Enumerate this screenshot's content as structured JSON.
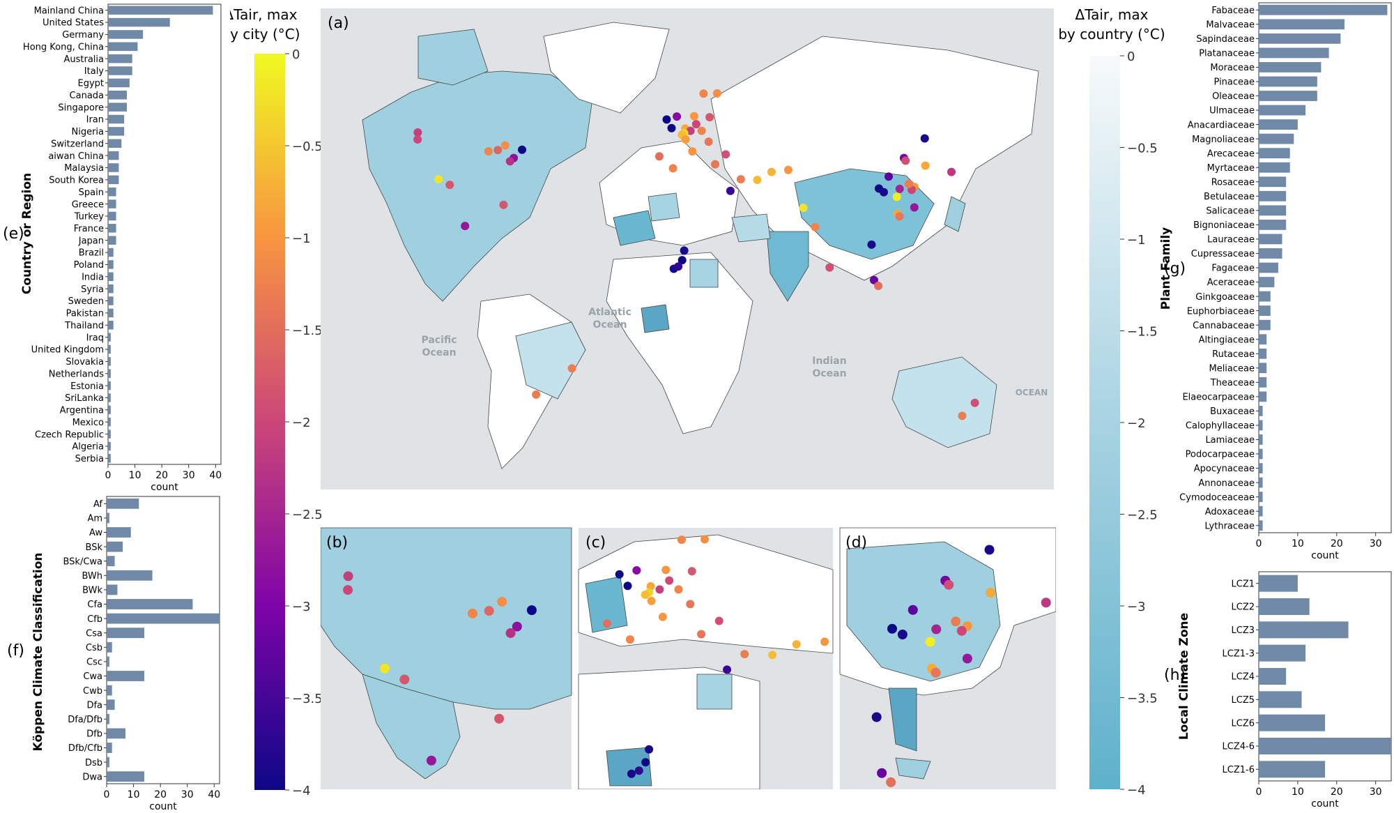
{
  "colors": {
    "bar": "#7089a7",
    "map_sea": "#dcdfe2",
    "map_land_none": "#ffffff",
    "country_light": "#e8f3f7",
    "country_dark": "#62b6d0",
    "city_scale": [
      "#0d0887",
      "#7e03a8",
      "#cc4778",
      "#f89540",
      "#f0f921"
    ]
  },
  "panel_labels": {
    "a": "(a)",
    "b": "(b)",
    "c": "(c)",
    "d": "(d)",
    "e": "(e)",
    "f": "(f)",
    "g": "(g)",
    "h": "(h)"
  },
  "colorbar_city": {
    "title_line1": "ΔTair, max",
    "title_line2": "by city (°C)",
    "ticks": [
      "0",
      "−0.5",
      "−1",
      "−1.5",
      "−2",
      "−2.5",
      "−3",
      "−3.5",
      "−4"
    ],
    "range": [
      0,
      -4
    ]
  },
  "colorbar_country": {
    "title_line1": "ΔTair, max",
    "title_line2": "by country (°C)",
    "ticks": [
      "0",
      "−0.5",
      "−1",
      "−1.5",
      "−2",
      "−2.5",
      "−3",
      "−3.5",
      "−4"
    ],
    "range": [
      0,
      -4
    ]
  },
  "map_labels": {
    "atlantic": [
      "Atlantic",
      "Ocean"
    ],
    "pacific": [
      "Pacific",
      "Ocean"
    ],
    "indian": [
      "Indian",
      "Ocean"
    ],
    "ocean": "OCEAN"
  },
  "chart_data": [
    {
      "id": "e",
      "type": "bar",
      "orientation": "horizontal",
      "ylabel": "Country or Region",
      "xlabel": "count",
      "xlim": [
        0,
        42
      ],
      "xticks": [
        "0",
        "10",
        "20",
        "30",
        "40"
      ],
      "categories": [
        "Mainland China",
        "United States",
        "Germany",
        "Hong Kong, China",
        "Australia",
        "Italy",
        "Egypt",
        "Canada",
        "Singapore",
        "Iran",
        "Nigeria",
        "Switzerland",
        "aiwan China",
        "Malaysia",
        "South Korea",
        "Spain",
        "Greece",
        "Turkey",
        "France",
        "Japan",
        "Brazil",
        "Poland",
        "India",
        "Syria",
        "Sweden",
        "Pakistan",
        "Thailand",
        "Iraq",
        "United Kingdom",
        "Slovakia",
        "Netherlands",
        "Estonia",
        "SriLanka",
        "Argentina",
        "Mexico",
        "Czech Republic",
        "Algeria",
        "Serbia"
      ],
      "values": [
        39,
        23,
        13,
        11,
        9,
        9,
        8,
        7,
        7,
        6,
        6,
        5,
        4,
        4,
        4,
        3,
        3,
        3,
        3,
        3,
        2,
        2,
        2,
        2,
        2,
        2,
        2,
        1,
        1,
        1,
        1,
        1,
        1,
        1,
        1,
        1,
        1,
        1
      ]
    },
    {
      "id": "f",
      "type": "bar",
      "orientation": "horizontal",
      "ylabel": "Köppen Climate Classification",
      "xlabel": "count",
      "xlim": [
        0,
        42
      ],
      "xticks": [
        "0",
        "10",
        "20",
        "30",
        "40"
      ],
      "categories": [
        "Af",
        "Am",
        "Aw",
        "BSk",
        "BSk/Cwa",
        "BWh",
        "BWk",
        "Cfa",
        "Cfb",
        "Csa",
        "Csb",
        "Csc",
        "Cwa",
        "Cwb",
        "Dfa",
        "Dfa/Dfb",
        "Dfb",
        "Dfb/Cfb",
        "Dsb",
        "Dwa"
      ],
      "values": [
        12,
        1,
        9,
        6,
        3,
        17,
        4,
        32,
        42,
        14,
        2,
        1,
        14,
        2,
        3,
        1,
        7,
        2,
        1,
        14
      ]
    },
    {
      "id": "g",
      "type": "bar",
      "orientation": "horizontal",
      "ylabel": "Plant Family",
      "xlabel": "count",
      "xlim": [
        0,
        34
      ],
      "xticks": [
        "0",
        "10",
        "20",
        "30"
      ],
      "categories": [
        "Fabaceae",
        "Malvaceae",
        "Sapindaceae",
        "Platanaceae",
        "Moraceae",
        "Pinaceae",
        "Oleaceae",
        "Ulmaceae",
        "Anacardiaceae",
        "Magnoliaceae",
        "Arecaceae",
        "Myrtaceae",
        "Rosaceae",
        "Betulaceae",
        "Salicaceae",
        "Bignoniaceae",
        "Lauraceae",
        "Cupressaceae",
        "Fagaceae",
        "Aceraceae",
        "Ginkgoaceae",
        "Euphorbiaceae",
        "Cannabaceae",
        "Altingiaceae",
        "Rutaceae",
        "Meliaceae",
        "Theaceae",
        "Elaeocarpaceae",
        "Buxaceae",
        "Calophyllaceae",
        "Lamiaceae",
        "Podocarpaceae",
        "Apocynaceae",
        "Annonaceae",
        "Cymodoceaceae",
        "Adoxaceae",
        "Lythraceae"
      ],
      "values": [
        33,
        22,
        21,
        18,
        16,
        15,
        15,
        12,
        10,
        9,
        8,
        8,
        7,
        7,
        7,
        7,
        6,
        6,
        5,
        4,
        3,
        3,
        3,
        2,
        2,
        2,
        2,
        2,
        1,
        1,
        1,
        1,
        1,
        1,
        1,
        1,
        1
      ]
    },
    {
      "id": "h",
      "type": "bar",
      "orientation": "horizontal",
      "ylabel": "Local Climate Zone",
      "xlabel": "count",
      "xlim": [
        0,
        34
      ],
      "xticks": [
        "0",
        "10",
        "20",
        "30"
      ],
      "categories": [
        "LCZ1",
        "LCZ2",
        "LCZ3",
        "LCZ1-3",
        "LCZ4",
        "LCZ5",
        "LCZ6",
        "LCZ4-6",
        "LCZ1-6"
      ],
      "values": [
        10,
        13,
        23,
        12,
        7,
        11,
        17,
        34,
        17
      ]
    },
    {
      "id": "a",
      "type": "scatter",
      "description_units": "longitude, latitude, ΔTair max (°C)",
      "points": [
        {
          "lon": -122.3,
          "lat": 47.6,
          "v": -2.1
        },
        {
          "lon": -122.4,
          "lat": 45.5,
          "v": -2.0
        },
        {
          "lon": -112.1,
          "lat": 33.5,
          "v": -0.2
        },
        {
          "lon": -106.6,
          "lat": 31.8,
          "v": -1.8
        },
        {
          "lon": -87.6,
          "lat": 41.9,
          "v": -1.2
        },
        {
          "lon": -83.0,
          "lat": 42.3,
          "v": -1.6
        },
        {
          "lon": -71.1,
          "lat": 42.4,
          "v": -4.0
        },
        {
          "lon": -75.2,
          "lat": 39.9,
          "v": -2.8
        },
        {
          "lon": -77.0,
          "lat": 38.9,
          "v": -2.3
        },
        {
          "lon": -80.2,
          "lat": 25.8,
          "v": -1.8
        },
        {
          "lon": -99.1,
          "lat": 19.4,
          "v": -2.7
        },
        {
          "lon": -79.4,
          "lat": 43.7,
          "v": -1.1
        },
        {
          "lon": -46.6,
          "lat": -23.5,
          "v": -1.3
        },
        {
          "lon": -64.2,
          "lat": -31.4,
          "v": -1.3
        },
        {
          "lon": -0.1,
          "lat": 51.5,
          "v": -4.0
        },
        {
          "lon": 2.3,
          "lat": 48.9,
          "v": -4.0
        },
        {
          "lon": 4.9,
          "lat": 52.4,
          "v": -2.9
        },
        {
          "lon": 13.4,
          "lat": 52.5,
          "v": -1.0
        },
        {
          "lon": 9.0,
          "lat": 48.8,
          "v": -0.8
        },
        {
          "lon": 11.6,
          "lat": 48.1,
          "v": -2.1
        },
        {
          "lon": 8.5,
          "lat": 47.4,
          "v": -0.4
        },
        {
          "lon": 7.4,
          "lat": 46.9,
          "v": -0.6
        },
        {
          "lon": 18.0,
          "lat": 59.3,
          "v": -1.2
        },
        {
          "lon": 24.7,
          "lat": 59.4,
          "v": -1.1
        },
        {
          "lon": 21.0,
          "lat": 52.2,
          "v": -1.8
        },
        {
          "lon": 14.4,
          "lat": 50.1,
          "v": -2.0
        },
        {
          "lon": 17.1,
          "lat": 48.1,
          "v": -1.2
        },
        {
          "lon": 20.5,
          "lat": 44.8,
          "v": -1.4
        },
        {
          "lon": 12.5,
          "lat": 41.9,
          "v": -1.0
        },
        {
          "lon": 9.2,
          "lat": 45.5,
          "v": -0.9
        },
        {
          "lon": 3.0,
          "lat": 36.8,
          "v": -1.2
        },
        {
          "lon": -3.7,
          "lat": 40.4,
          "v": -1.5
        },
        {
          "lon": 23.7,
          "lat": 38.0,
          "v": -1.4
        },
        {
          "lon": 28.9,
          "lat": 41.0,
          "v": -1.9
        },
        {
          "lon": 36.3,
          "lat": 33.5,
          "v": -1.3
        },
        {
          "lon": 31.2,
          "lat": 30.0,
          "v": -3.6
        },
        {
          "lon": 44.4,
          "lat": 33.3,
          "v": -0.6
        },
        {
          "lon": 51.4,
          "lat": 35.7,
          "v": -0.7
        },
        {
          "lon": 59.6,
          "lat": 36.3,
          "v": -1.0
        },
        {
          "lon": 67.0,
          "lat": 24.9,
          "v": -0.2
        },
        {
          "lon": 72.8,
          "lat": 19.1,
          "v": -1.2
        },
        {
          "lon": 79.9,
          "lat": 6.9,
          "v": -1.9
        },
        {
          "lon": 3.4,
          "lat": 6.5,
          "v": -3.9
        },
        {
          "lon": 7.5,
          "lat": 9.1,
          "v": -4.0
        },
        {
          "lon": 8.5,
          "lat": 12.0,
          "v": -3.9
        },
        {
          "lon": 5.6,
          "lat": 7.2,
          "v": -3.7
        },
        {
          "lon": 100.5,
          "lat": 13.8,
          "v": -3.9
        },
        {
          "lon": 101.7,
          "lat": 3.1,
          "v": -3.2
        },
        {
          "lon": 103.8,
          "lat": 1.35,
          "v": -1.5
        },
        {
          "lon": 104.1,
          "lat": 30.7,
          "v": -4.0
        },
        {
          "lon": 116.4,
          "lat": 39.9,
          "v": -3.1
        },
        {
          "lon": 117.2,
          "lat": 39.1,
          "v": -1.9
        },
        {
          "lon": 121.5,
          "lat": 31.2,
          "v": -1.0
        },
        {
          "lon": 113.3,
          "lat": 23.1,
          "v": -0.8
        },
        {
          "lon": 114.2,
          "lat": 22.3,
          "v": -1.4
        },
        {
          "lon": 121.5,
          "lat": 25.0,
          "v": -2.7
        },
        {
          "lon": 126.9,
          "lat": 37.6,
          "v": -0.8
        },
        {
          "lon": 139.7,
          "lat": 35.7,
          "v": -2.2
        },
        {
          "lon": 126.6,
          "lat": 45.8,
          "v": -3.9
        },
        {
          "lon": 114.3,
          "lat": 30.6,
          "v": -2.5
        },
        {
          "lon": 108.9,
          "lat": 34.3,
          "v": -3.3
        },
        {
          "lon": 120.2,
          "lat": 30.3,
          "v": -2.0
        },
        {
          "lon": 118.8,
          "lat": 32.1,
          "v": -1.3
        },
        {
          "lon": 112.9,
          "lat": 28.2,
          "v": -0.1
        },
        {
          "lon": 106.5,
          "lat": 29.6,
          "v": -3.9
        },
        {
          "lon": 151.2,
          "lat": -33.9,
          "v": -1.9
        },
        {
          "lon": 145.0,
          "lat": -37.8,
          "v": -1.3
        }
      ]
    }
  ]
}
